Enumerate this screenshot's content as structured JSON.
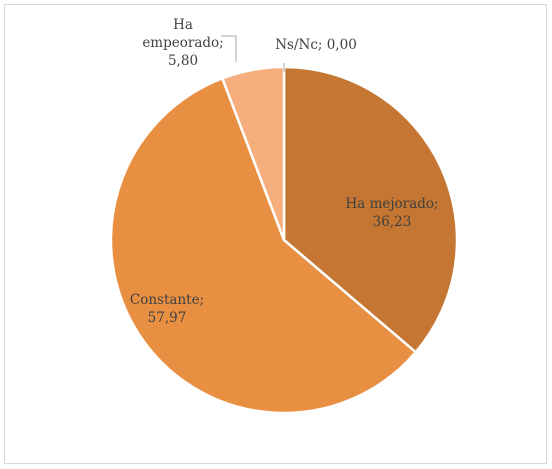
{
  "chart_data": {
    "type": "pie",
    "title": "",
    "slices": [
      {
        "label": "Ha mejorado",
        "value": 36.23,
        "line1": "Ha mejorado;",
        "line2": "36,23",
        "color": "#c47632"
      },
      {
        "label": "Constante",
        "value": 57.97,
        "line1": "Constante;",
        "line2": "57,97",
        "color": "#e88f42"
      },
      {
        "label": "Ha empeorado",
        "value": 5.8,
        "line1": "Ha",
        "line1b": "empeorado;",
        "line2": "5,80",
        "color": "#f5ae7c"
      },
      {
        "label": "Ns/Nc",
        "value": 0.0,
        "line1": "Ns/Nc; 0,00",
        "color": "#f0a868"
      }
    ],
    "legend": "none",
    "data_labels": "category; value"
  }
}
